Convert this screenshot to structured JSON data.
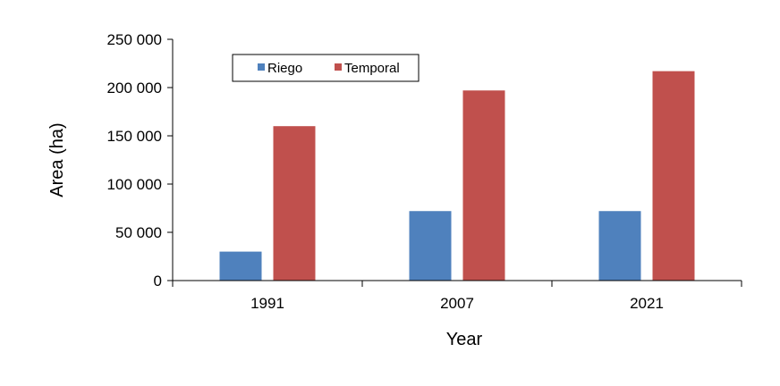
{
  "chart_data": {
    "type": "bar",
    "categories": [
      "1991",
      "2007",
      "2021"
    ],
    "series": [
      {
        "name": "Riego",
        "values": [
          30000,
          72000,
          72000
        ],
        "color": "#4f81bd"
      },
      {
        "name": "Temporal",
        "values": [
          160000,
          197000,
          217000
        ],
        "color": "#c0504d"
      }
    ],
    "xlabel": "Year",
    "ylabel": "Area (ha)",
    "ylim": [
      0,
      250000
    ],
    "yticks": [
      0,
      50000,
      100000,
      150000,
      200000,
      250000
    ],
    "ytick_labels": [
      "0",
      "50 000",
      "100 000",
      "150 000",
      "200 000",
      "250 000"
    ],
    "grid": false,
    "legend_position": "top-left"
  }
}
